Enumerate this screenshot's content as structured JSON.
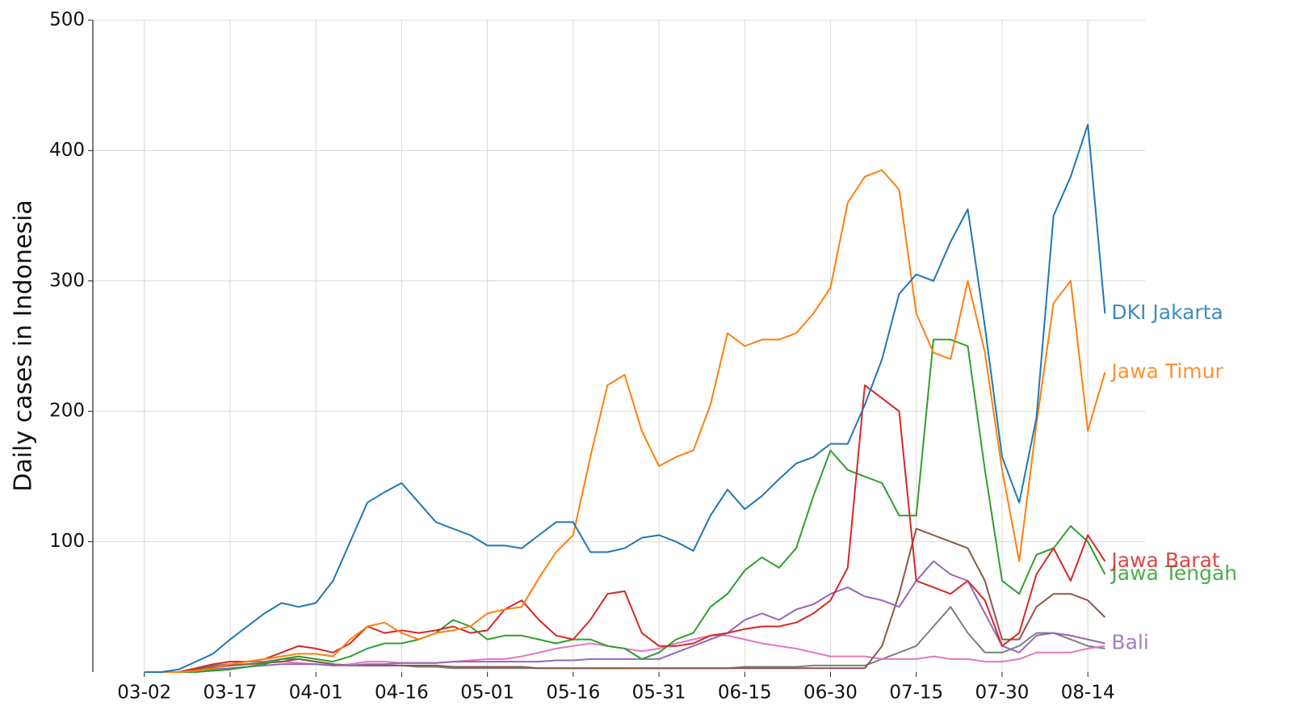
{
  "chart_data": {
    "type": "line",
    "y_label": "Daily cases in Indonesia",
    "x": [
      "03-02",
      "03-05",
      "03-08",
      "03-11",
      "03-14",
      "03-17",
      "03-20",
      "03-23",
      "03-26",
      "03-29",
      "04-01",
      "04-04",
      "04-07",
      "04-10",
      "04-13",
      "04-16",
      "04-19",
      "04-22",
      "04-25",
      "04-28",
      "05-01",
      "05-04",
      "05-07",
      "05-10",
      "05-13",
      "05-16",
      "05-19",
      "05-22",
      "05-25",
      "05-28",
      "05-31",
      "06-03",
      "06-06",
      "06-09",
      "06-12",
      "06-15",
      "06-18",
      "06-21",
      "06-24",
      "06-27",
      "06-30",
      "07-03",
      "07-06",
      "07-09",
      "07-12",
      "07-15",
      "07-18",
      "07-21",
      "07-24",
      "07-27",
      "07-30",
      "08-02",
      "08-05",
      "08-08",
      "08-11",
      "08-14",
      "08-17"
    ],
    "xlim": [
      "02-22",
      "08-24"
    ],
    "xticks": [
      "03-02",
      "03-17",
      "04-01",
      "04-16",
      "05-01",
      "05-16",
      "05-31",
      "06-15",
      "06-30",
      "07-15",
      "07-30",
      "08-14"
    ],
    "ylim": [
      0,
      500
    ],
    "yticks": [
      100,
      200,
      300,
      400,
      500
    ],
    "grid": true,
    "series": [
      {
        "name": "DKI Jakarta",
        "color": "#1f77b4",
        "values": [
          0,
          0,
          2,
          8,
          14,
          25,
          35,
          45,
          53,
          50,
          53,
          70,
          100,
          130,
          138,
          145,
          130,
          115,
          110,
          105,
          97,
          97,
          95,
          105,
          115,
          115,
          92,
          92,
          95,
          103,
          105,
          100,
          93,
          120,
          140,
          125,
          135,
          148,
          160,
          165,
          175,
          175,
          205,
          240,
          290,
          305,
          300,
          330,
          355,
          265,
          165,
          130,
          195,
          350,
          380,
          420,
          275
        ]
      },
      {
        "name": "Jawa Timur",
        "color": "#ff7f0e",
        "values": [
          0,
          0,
          0,
          1,
          3,
          6,
          8,
          10,
          12,
          14,
          14,
          12,
          25,
          35,
          38,
          30,
          25,
          30,
          32,
          35,
          45,
          48,
          50,
          72,
          92,
          105,
          165,
          220,
          228,
          185,
          158,
          165,
          170,
          205,
          260,
          250,
          255,
          255,
          260,
          275,
          295,
          360,
          380,
          385,
          370,
          275,
          245,
          240,
          300,
          245,
          155,
          85,
          190,
          283,
          300,
          185,
          230
        ]
      },
      {
        "name": "Jawa Barat",
        "color": "#d62728",
        "values": [
          0,
          0,
          0,
          3,
          6,
          8,
          8,
          10,
          15,
          20,
          18,
          15,
          22,
          35,
          30,
          32,
          30,
          32,
          35,
          30,
          32,
          48,
          55,
          40,
          28,
          25,
          40,
          60,
          62,
          30,
          20,
          20,
          22,
          28,
          30,
          33,
          35,
          35,
          38,
          45,
          55,
          80,
          220,
          210,
          200,
          70,
          65,
          60,
          70,
          55,
          20,
          30,
          75,
          95,
          70,
          105,
          85
        ]
      },
      {
        "name": "Jawa Tengah",
        "color": "#2ca02c",
        "values": [
          0,
          0,
          0,
          0,
          1,
          2,
          4,
          6,
          10,
          12,
          10,
          8,
          12,
          18,
          22,
          22,
          25,
          30,
          40,
          35,
          25,
          28,
          28,
          25,
          22,
          25,
          25,
          20,
          18,
          10,
          15,
          25,
          30,
          50,
          60,
          78,
          88,
          80,
          95,
          135,
          170,
          155,
          150,
          145,
          120,
          120,
          255,
          255,
          250,
          155,
          70,
          60,
          90,
          95,
          112,
          100,
          75
        ]
      },
      {
        "name": "Bali",
        "color": "#9467bd",
        "values": [
          0,
          0,
          0,
          0,
          2,
          3,
          4,
          5,
          6,
          6,
          6,
          5,
          5,
          6,
          6,
          7,
          7,
          7,
          8,
          8,
          8,
          8,
          8,
          8,
          9,
          9,
          10,
          10,
          10,
          10,
          10,
          15,
          20,
          25,
          30,
          40,
          45,
          40,
          48,
          52,
          60,
          65,
          58,
          55,
          50,
          70,
          85,
          75,
          70,
          45,
          20,
          15,
          28,
          30,
          28,
          25,
          22
        ]
      },
      {
        "color": "#8c564b",
        "values": [
          0,
          0,
          0,
          2,
          4,
          5,
          6,
          7,
          8,
          10,
          8,
          6,
          5,
          5,
          5,
          5,
          5,
          5,
          4,
          4,
          4,
          4,
          4,
          3,
          3,
          3,
          3,
          3,
          3,
          3,
          3,
          3,
          3,
          3,
          3,
          3,
          3,
          3,
          3,
          3,
          3,
          3,
          3,
          20,
          60,
          110,
          105,
          100,
          95,
          70,
          25,
          25,
          50,
          60,
          60,
          55,
          42
        ]
      },
      {
        "color": "#e377c2",
        "values": [
          0,
          0,
          0,
          1,
          3,
          5,
          6,
          7,
          8,
          7,
          6,
          5,
          6,
          8,
          8,
          7,
          7,
          7,
          8,
          9,
          10,
          10,
          12,
          15,
          18,
          20,
          22,
          20,
          18,
          16,
          18,
          22,
          25,
          28,
          28,
          25,
          22,
          20,
          18,
          15,
          12,
          12,
          12,
          10,
          10,
          10,
          12,
          10,
          10,
          8,
          8,
          10,
          15,
          15,
          15,
          18,
          20
        ]
      },
      {
        "color": "#7f7f7f",
        "values": [
          0,
          0,
          0,
          2,
          5,
          6,
          8,
          8,
          10,
          10,
          8,
          6,
          5,
          5,
          5,
          5,
          4,
          4,
          3,
          3,
          3,
          3,
          3,
          3,
          3,
          3,
          3,
          3,
          3,
          3,
          3,
          3,
          3,
          3,
          3,
          4,
          4,
          4,
          4,
          5,
          5,
          5,
          5,
          10,
          15,
          20,
          35,
          50,
          30,
          15,
          15,
          20,
          30,
          30,
          25,
          20,
          18
        ]
      }
    ]
  }
}
